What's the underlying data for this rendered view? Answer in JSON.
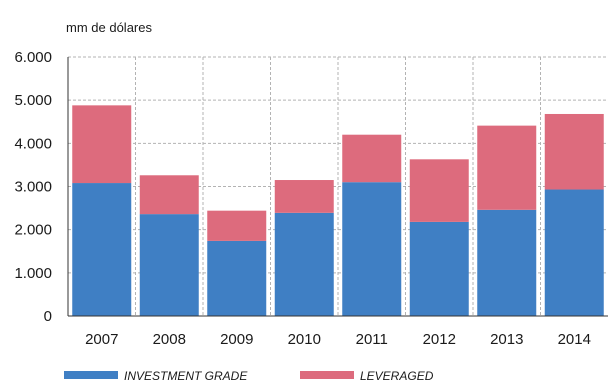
{
  "chart_data": {
    "type": "bar",
    "stacked": true,
    "unit_label": "mm de dólares",
    "categories": [
      "2007",
      "2008",
      "2009",
      "2010",
      "2011",
      "2012",
      "2013",
      "2014"
    ],
    "series": [
      {
        "name": "INVESTMENT GRADE",
        "color": "#3f7fc4",
        "values": [
          3080,
          2360,
          1740,
          2390,
          3100,
          2180,
          2460,
          2930
        ]
      },
      {
        "name": "LEVERAGED",
        "color": "#dd6b7d",
        "values": [
          1800,
          900,
          700,
          760,
          1100,
          1450,
          1950,
          1750
        ]
      }
    ],
    "ylim": [
      0,
      6000
    ],
    "yticks": [
      0,
      1000,
      2000,
      3000,
      4000,
      5000,
      6000
    ],
    "ytick_labels": [
      "0",
      "1.000",
      "2.000",
      "3.000",
      "4.000",
      "5.000",
      "6.000"
    ],
    "grid": true,
    "legend_position": "bottom"
  }
}
